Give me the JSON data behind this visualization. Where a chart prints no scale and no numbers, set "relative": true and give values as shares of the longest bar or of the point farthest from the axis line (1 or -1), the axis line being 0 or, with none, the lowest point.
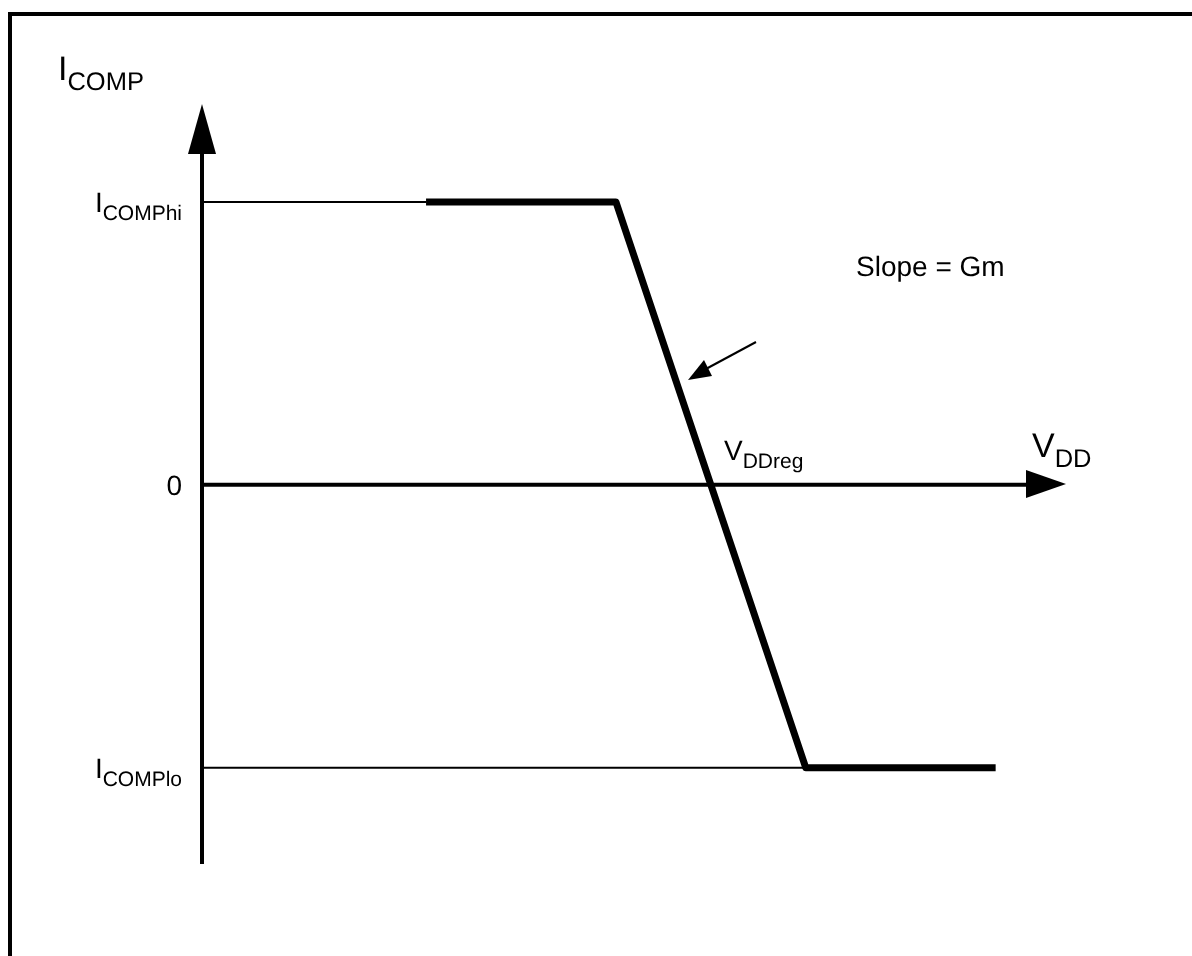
{
  "chart_data": {
    "type": "line",
    "relative": true,
    "xlabel": "V$_{DD}$",
    "ylabel": "I$_{COMP}$",
    "categories": [
      null,
      null,
      null,
      null,
      null
    ],
    "series": [
      {
        "color": "#000000",
        "values": [
          null,
          1,
          1,
          -1,
          -1
        ]
      }
    ],
    "ref_lines": [
      {
        "axis": "y",
        "value": 1,
        "label": "I$_{COMPhi}$",
        "color": "#000000"
      },
      {
        "axis": "y",
        "value": -1,
        "label": "I$_{COMPlo}$",
        "color": "#000000"
      },
      {
        "axis": "y",
        "value": 0,
        "label": "0",
        "color": "#000000"
      }
    ],
    "annotations": [
      "Slope = Gm",
      "V$_{DDreg}$"
    ],
    "legend": false,
    "marker": "none",
    "line_style": "solid"
  }
}
